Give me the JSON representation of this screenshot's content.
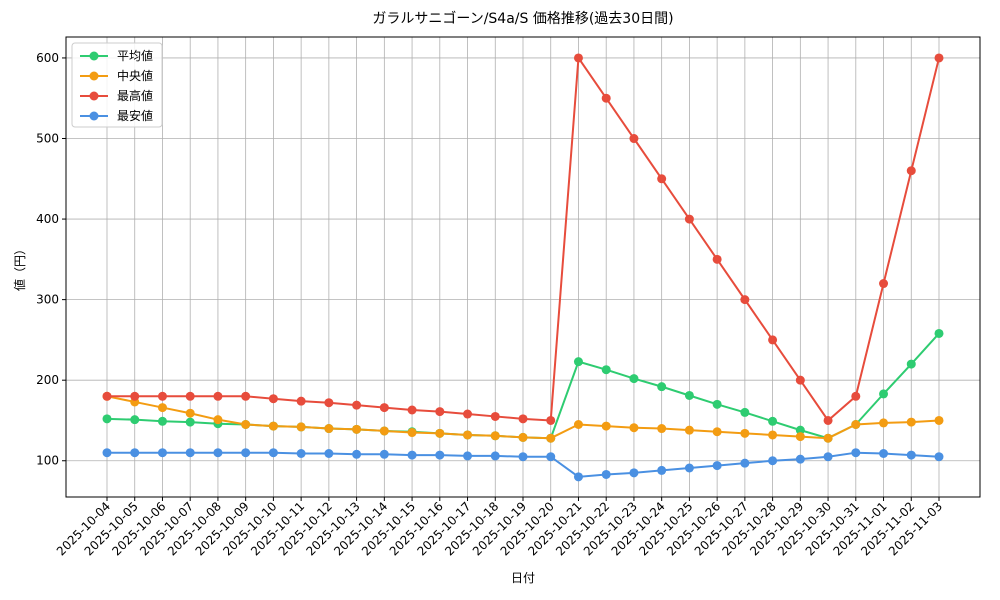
{
  "chart_data": {
    "type": "line",
    "title": "ガラルサニゴーン/S4a/S 価格推移(過去30日間)",
    "x_label": "日付",
    "y_label": "値（円）",
    "categories": [
      "2025-10-04",
      "2025-10-05",
      "2025-10-06",
      "2025-10-07",
      "2025-10-08",
      "2025-10-09",
      "2025-10-10",
      "2025-10-11",
      "2025-10-12",
      "2025-10-13",
      "2025-10-14",
      "2025-10-15",
      "2025-10-16",
      "2025-10-17",
      "2025-10-18",
      "2025-10-19",
      "2025-10-20",
      "2025-10-21",
      "2025-10-22",
      "2025-10-23",
      "2025-10-24",
      "2025-10-25",
      "2025-10-26",
      "2025-10-27",
      "2025-10-28",
      "2025-10-29",
      "2025-10-30",
      "2025-10-31",
      "2025-11-01",
      "2025-11-02",
      "2025-11-03"
    ],
    "series": [
      {
        "name": "平均値",
        "color": "#2ecc71",
        "values": [
          152,
          151,
          149,
          148,
          146,
          145,
          143,
          142,
          140,
          139,
          137,
          136,
          134,
          132,
          131,
          129,
          128,
          223,
          213,
          202,
          192,
          181,
          170,
          160,
          149,
          138,
          128,
          145,
          183,
          220,
          258
        ]
      },
      {
        "name": "中央値",
        "color": "#f39c12",
        "values": [
          180,
          173,
          166,
          159,
          151,
          145,
          143,
          142,
          140,
          139,
          137,
          135,
          134,
          132,
          131,
          129,
          128,
          145,
          143,
          141,
          140,
          138,
          136,
          134,
          132,
          130,
          128,
          145,
          147,
          148,
          150
        ]
      },
      {
        "name": "最高値",
        "color": "#e74c3c",
        "values": [
          180,
          180,
          180,
          180,
          180,
          180,
          177,
          174,
          172,
          169,
          166,
          163,
          161,
          158,
          155,
          152,
          150,
          600,
          550,
          500,
          450,
          400,
          350,
          300,
          250,
          200,
          150,
          180,
          320,
          460,
          600
        ]
      },
      {
        "name": "最安値",
        "color": "#4a90e2",
        "values": [
          110,
          110,
          110,
          110,
          110,
          110,
          110,
          109,
          109,
          108,
          108,
          107,
          107,
          106,
          106,
          105,
          105,
          80,
          83,
          85,
          88,
          91,
          94,
          97,
          100,
          102,
          105,
          110,
          109,
          107,
          105
        ]
      }
    ],
    "ylim": [
      55,
      626
    ],
    "yticks": [
      100,
      200,
      300,
      400,
      500,
      600
    ],
    "grid": true,
    "legend": "upper left"
  }
}
